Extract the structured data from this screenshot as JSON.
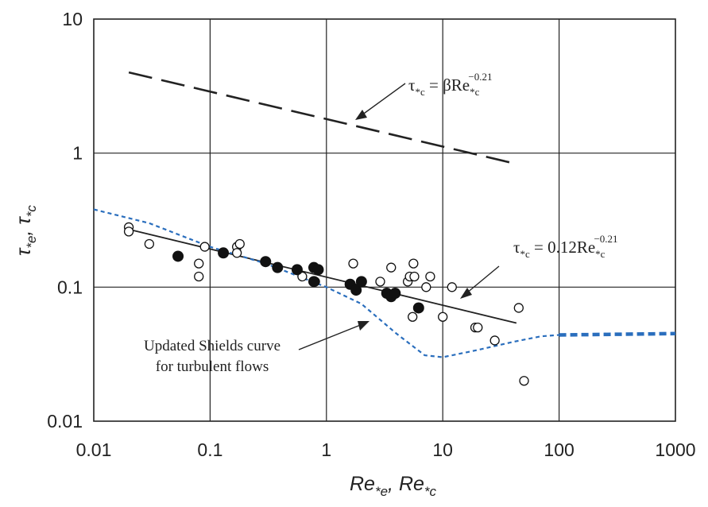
{
  "chart_data": {
    "type": "scatter",
    "log_x": true,
    "log_y": true,
    "xlim": [
      0.01,
      1000
    ],
    "ylim": [
      0.01,
      10
    ],
    "grid": true,
    "x_ticks": [
      "0.01",
      "0.1",
      "1",
      "10",
      "100",
      "1000"
    ],
    "y_ticks": [
      "0.01",
      "0.1",
      "1",
      "10"
    ],
    "xlabel": {
      "main": "Re",
      "sub": "*e",
      "sep": ", ",
      "main2": "Re",
      "sub2": "*c"
    },
    "ylabel": {
      "main": "τ",
      "sub": "*e",
      "sep": ", ",
      "main2": "τ",
      "sub2": "*c"
    },
    "series": [
      {
        "kind": "open_circles",
        "points": [
          [
            0.02,
            0.28
          ],
          [
            0.02,
            0.26
          ],
          [
            0.03,
            0.21
          ],
          [
            0.08,
            0.15
          ],
          [
            0.08,
            0.12
          ],
          [
            0.09,
            0.2
          ],
          [
            0.17,
            0.2
          ],
          [
            0.18,
            0.21
          ],
          [
            0.17,
            0.18
          ],
          [
            0.62,
            0.12
          ],
          [
            0.8,
            0.11
          ],
          [
            1.7,
            0.15
          ],
          [
            2.9,
            0.11
          ],
          [
            3.6,
            0.14
          ],
          [
            5.0,
            0.11
          ],
          [
            5.2,
            0.12
          ],
          [
            5.6,
            0.15
          ],
          [
            5.7,
            0.12
          ],
          [
            5.5,
            0.06
          ],
          [
            7.2,
            0.1
          ],
          [
            7.8,
            0.12
          ],
          [
            10,
            0.06
          ],
          [
            12,
            0.1
          ],
          [
            19,
            0.05
          ],
          [
            20,
            0.05
          ],
          [
            28,
            0.04
          ],
          [
            45,
            0.07
          ],
          [
            50,
            0.02
          ]
        ]
      },
      {
        "kind": "filled_circles",
        "points": [
          [
            0.053,
            0.17
          ],
          [
            0.13,
            0.18
          ],
          [
            0.3,
            0.155
          ],
          [
            0.38,
            0.14
          ],
          [
            0.56,
            0.135
          ],
          [
            0.78,
            0.14
          ],
          [
            0.85,
            0.135
          ],
          [
            0.78,
            0.11
          ],
          [
            1.6,
            0.105
          ],
          [
            1.8,
            0.095
          ],
          [
            2.0,
            0.11
          ],
          [
            3.3,
            0.09
          ],
          [
            3.6,
            0.085
          ],
          [
            3.9,
            0.09
          ],
          [
            6.2,
            0.07
          ]
        ]
      },
      {
        "kind": "fit_line",
        "points": [
          [
            0.02,
            0.27
          ],
          [
            43,
            0.054
          ]
        ]
      },
      {
        "kind": "upper_dashed_line",
        "points": [
          [
            0.02,
            4.0
          ],
          [
            43,
            0.83
          ]
        ]
      },
      {
        "kind": "updated_shields_curve",
        "points": [
          [
            0.01,
            0.38
          ],
          [
            0.03,
            0.3
          ],
          [
            0.1,
            0.2
          ],
          [
            0.3,
            0.15
          ],
          [
            1.0,
            0.1
          ],
          [
            2.0,
            0.075
          ],
          [
            4.0,
            0.045
          ],
          [
            7.0,
            0.031
          ],
          [
            10,
            0.03
          ],
          [
            20,
            0.034
          ],
          [
            40,
            0.039
          ],
          [
            70,
            0.043
          ],
          [
            100,
            0.044
          ],
          [
            1000,
            0.045
          ]
        ]
      }
    ],
    "annotations": {
      "upper_eq": {
        "lhs": "τ",
        "lhs_sub": "*c",
        "rhs": " = βRe",
        "rhs_sub": "*c",
        "exp": "−0.21"
      },
      "lower_eq": {
        "lhs": "τ",
        "lhs_sub": "*c",
        "rhs": " = 0.12Re",
        "rhs_sub": "*c",
        "exp": "−0.21"
      },
      "shields_label": [
        "Updated Shields curve",
        "for turbulent flows"
      ]
    },
    "colors": {
      "axes": "#222222",
      "markers": "#111111",
      "shields": "#2a6ebd",
      "background": "#ffffff"
    }
  }
}
